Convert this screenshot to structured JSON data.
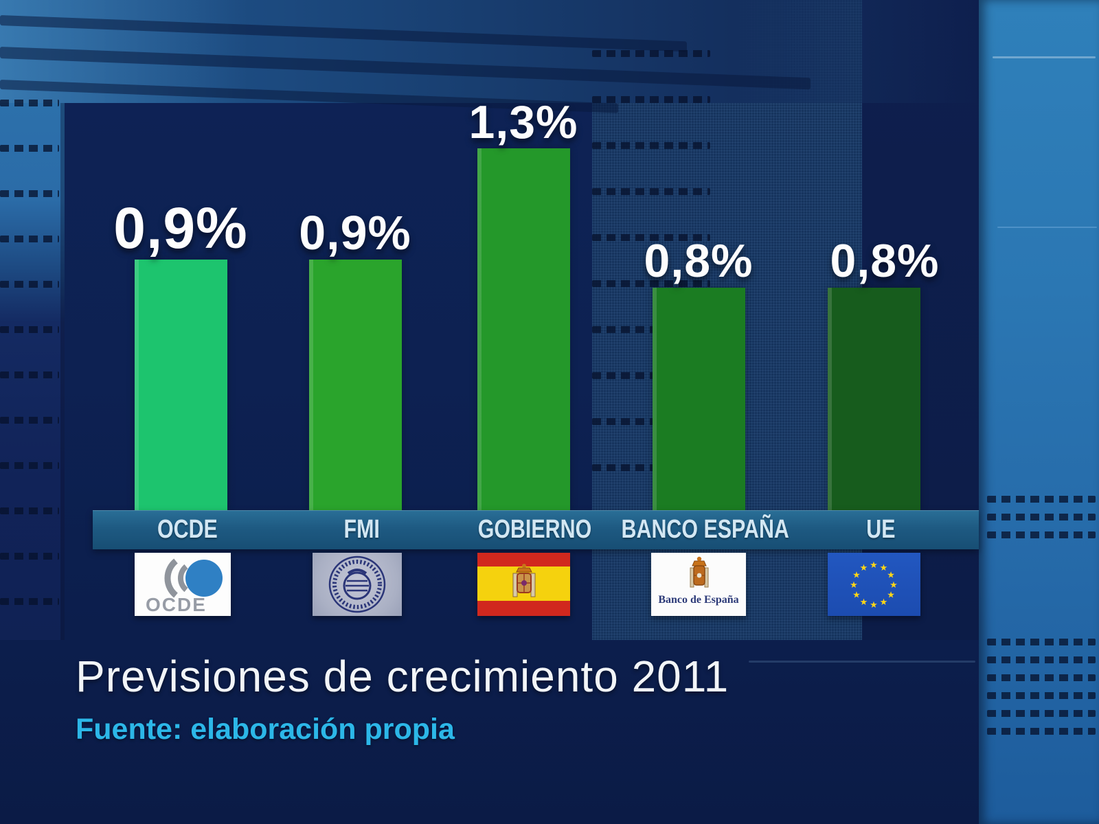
{
  "chart_data": {
    "type": "bar",
    "title": "Previsiones de crecimiento 2011",
    "source": "Fuente: elaboración propia",
    "categories": [
      "OCDE",
      "FMI",
      "GOBIERNO",
      "BANCO ESPAÑA",
      "UE"
    ],
    "values": [
      0.9,
      0.9,
      1.3,
      0.8,
      0.8
    ],
    "value_labels": [
      "0,9%",
      "0,9%",
      "1,3%",
      "0,8%",
      "0,8%"
    ],
    "unit": "%",
    "xlabel": "",
    "ylabel": "",
    "ylim": [
      0,
      1.4
    ],
    "grid": false,
    "legend_position": "none",
    "bar_colors": [
      "#1dc46e",
      "#2aa42c",
      "#24982a",
      "#1b7c22",
      "#175c1d"
    ]
  },
  "logos": {
    "ocde_caption": "OCDE",
    "banco_caption": "Banco de España"
  },
  "colors": {
    "title_white": "#f2f5f8",
    "source_cyan": "#2cb7e8",
    "category_band_blue": "#1e5a82",
    "background_navy": "#0d2152",
    "side_panel_blue": "#2b77b3",
    "eu_flag_blue": "#1c4cb0",
    "star_yellow": "#ffd617",
    "spain_red": "#d1281e",
    "spain_yellow": "#f5d20e"
  }
}
